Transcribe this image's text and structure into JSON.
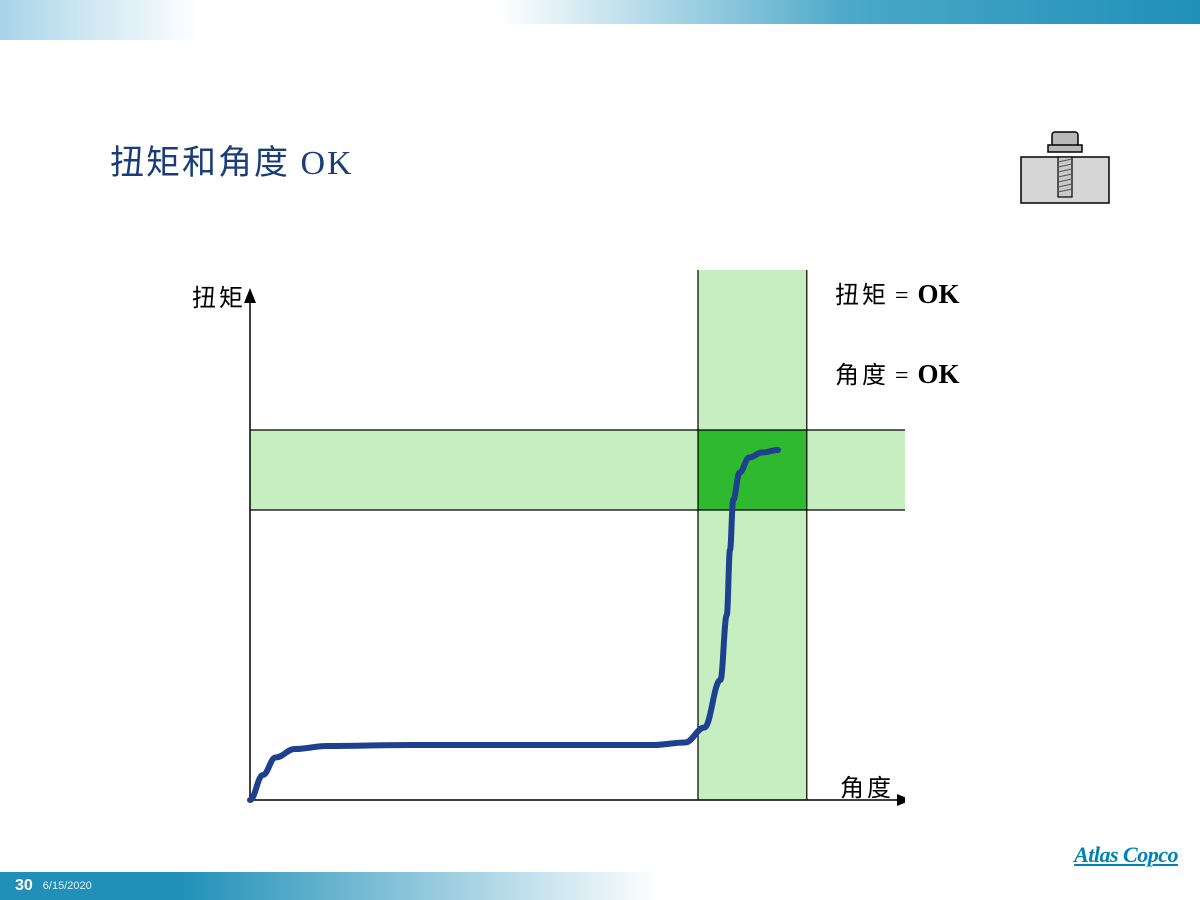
{
  "slide": {
    "title": "扭矩和角度 OK",
    "page_number": "30",
    "date": "6/15/2020",
    "logo_text": "Atlas Copco"
  },
  "status": {
    "torque_label": "扭矩",
    "torque_value": "OK",
    "angle_label": "角度",
    "angle_value": "OK",
    "equals": "="
  },
  "chart": {
    "type": "line",
    "y_axis_label": "扭矩",
    "x_axis_label": "角度",
    "background_color": "#ffffff",
    "axis_color": "#000000",
    "axis_width": 1.5,
    "curve_color": "#1f3f8f",
    "curve_width": 6,
    "torque_band": {
      "y_min": 0.58,
      "y_max": 0.74,
      "fill": "#c7eec0",
      "note": "horizontal light-green tolerance band (normalized y, 0=bottom axis, 1=top)"
    },
    "angle_band": {
      "x_min": 0.7,
      "x_max": 0.87,
      "fill": "#c7eec0",
      "note": "vertical light-green tolerance band (normalized x, 0=y-axis, 1=right)"
    },
    "ok_zone": {
      "fill": "#2fb92f",
      "note": "intersection of the two bands, bright green"
    },
    "guide_lines": {
      "color": "#000000",
      "width": 1.2,
      "note": "black lines at band edges extending across chart"
    },
    "curve_points_normalized": [
      [
        0.0,
        0.0
      ],
      [
        0.02,
        0.05
      ],
      [
        0.04,
        0.085
      ],
      [
        0.07,
        0.102
      ],
      [
        0.12,
        0.108
      ],
      [
        0.25,
        0.11
      ],
      [
        0.45,
        0.11
      ],
      [
        0.63,
        0.11
      ],
      [
        0.68,
        0.115
      ],
      [
        0.71,
        0.145
      ],
      [
        0.735,
        0.24
      ],
      [
        0.745,
        0.37
      ],
      [
        0.75,
        0.5
      ],
      [
        0.755,
        0.6
      ],
      [
        0.765,
        0.655
      ],
      [
        0.78,
        0.685
      ],
      [
        0.8,
        0.695
      ],
      [
        0.825,
        0.7
      ]
    ]
  },
  "bolt_icon": {
    "base_fill": "#d6d6d6",
    "bolt_fill": "#b9b9b9",
    "stroke": "#000000"
  },
  "colors": {
    "title_color": "#1a3d7a",
    "footer_bg": "#2090b8",
    "logo_color": "#0081b3",
    "top_gradient_start": "#a8d4e8"
  }
}
